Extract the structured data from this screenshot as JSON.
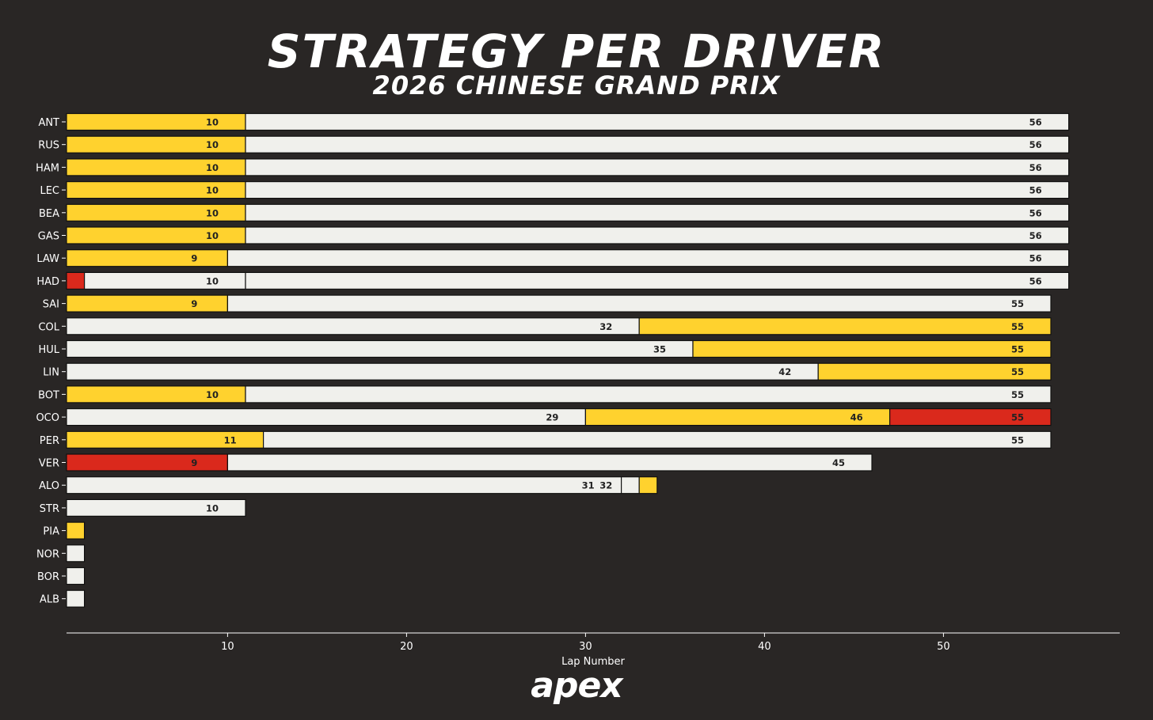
{
  "header": {
    "title": "STRATEGY PER DRIVER",
    "subtitle": "2026 CHINESE GRAND PRIX"
  },
  "brand": {
    "logo_text": "apex"
  },
  "colors": {
    "background": "#292625",
    "MEDIUM": "#FFD22E",
    "HARD": "#F0F0EC",
    "SOFT": "#DA291C",
    "text_on_bar": "#222222"
  },
  "chart_data": {
    "type": "bar",
    "orientation": "horizontal-stacked",
    "title": "STRATEGY PER DRIVER",
    "subtitle": "2026 CHINESE GRAND PRIX",
    "xlabel": "Lap Number",
    "ylabel": "",
    "xlim": [
      1,
      60
    ],
    "xticks": [
      10,
      20,
      30,
      40,
      50
    ],
    "compounds": [
      "SOFT",
      "MEDIUM",
      "HARD"
    ],
    "drivers": [
      {
        "driver": "ANT",
        "stints": [
          {
            "compound": "MEDIUM",
            "end": 10,
            "label": "10"
          },
          {
            "compound": "HARD",
            "end": 56,
            "label": "56"
          }
        ]
      },
      {
        "driver": "RUS",
        "stints": [
          {
            "compound": "MEDIUM",
            "end": 10,
            "label": "10"
          },
          {
            "compound": "HARD",
            "end": 56,
            "label": "56"
          }
        ]
      },
      {
        "driver": "HAM",
        "stints": [
          {
            "compound": "MEDIUM",
            "end": 10,
            "label": "10"
          },
          {
            "compound": "HARD",
            "end": 56,
            "label": "56"
          }
        ]
      },
      {
        "driver": "LEC",
        "stints": [
          {
            "compound": "MEDIUM",
            "end": 10,
            "label": "10"
          },
          {
            "compound": "HARD",
            "end": 56,
            "label": "56"
          }
        ]
      },
      {
        "driver": "BEA",
        "stints": [
          {
            "compound": "MEDIUM",
            "end": 10,
            "label": "10"
          },
          {
            "compound": "HARD",
            "end": 56,
            "label": "56"
          }
        ]
      },
      {
        "driver": "GAS",
        "stints": [
          {
            "compound": "MEDIUM",
            "end": 10,
            "label": "10"
          },
          {
            "compound": "HARD",
            "end": 56,
            "label": "56"
          }
        ]
      },
      {
        "driver": "LAW",
        "stints": [
          {
            "compound": "MEDIUM",
            "end": 9,
            "label": "9"
          },
          {
            "compound": "HARD",
            "end": 56,
            "label": "56"
          }
        ]
      },
      {
        "driver": "HAD",
        "stints": [
          {
            "compound": "SOFT",
            "end": 1,
            "label": ""
          },
          {
            "compound": "HARD",
            "end": 10,
            "label": "10"
          },
          {
            "compound": "HARD",
            "end": 56,
            "label": "56"
          }
        ]
      },
      {
        "driver": "SAI",
        "stints": [
          {
            "compound": "MEDIUM",
            "end": 9,
            "label": "9"
          },
          {
            "compound": "HARD",
            "end": 55,
            "label": "55"
          }
        ]
      },
      {
        "driver": "COL",
        "stints": [
          {
            "compound": "HARD",
            "end": 32,
            "label": "32"
          },
          {
            "compound": "MEDIUM",
            "end": 55,
            "label": "55"
          }
        ]
      },
      {
        "driver": "HUL",
        "stints": [
          {
            "compound": "HARD",
            "end": 35,
            "label": "35"
          },
          {
            "compound": "MEDIUM",
            "end": 55,
            "label": "55"
          }
        ]
      },
      {
        "driver": "LIN",
        "stints": [
          {
            "compound": "HARD",
            "end": 42,
            "label": "42"
          },
          {
            "compound": "MEDIUM",
            "end": 55,
            "label": "55"
          }
        ]
      },
      {
        "driver": "BOT",
        "stints": [
          {
            "compound": "MEDIUM",
            "end": 10,
            "label": "10"
          },
          {
            "compound": "HARD",
            "end": 55,
            "label": "55"
          }
        ]
      },
      {
        "driver": "OCO",
        "stints": [
          {
            "compound": "HARD",
            "end": 29,
            "label": "29"
          },
          {
            "compound": "MEDIUM",
            "end": 46,
            "label": "46"
          },
          {
            "compound": "SOFT",
            "end": 55,
            "label": "55"
          }
        ]
      },
      {
        "driver": "PER",
        "stints": [
          {
            "compound": "MEDIUM",
            "end": 11,
            "label": "11"
          },
          {
            "compound": "HARD",
            "end": 55,
            "label": "55"
          }
        ]
      },
      {
        "driver": "VER",
        "stints": [
          {
            "compound": "SOFT",
            "end": 9,
            "label": "9"
          },
          {
            "compound": "HARD",
            "end": 45,
            "label": "45"
          }
        ]
      },
      {
        "driver": "ALO",
        "stints": [
          {
            "compound": "HARD",
            "end": 31,
            "label": "31"
          },
          {
            "compound": "HARD",
            "end": 32,
            "label": "32"
          },
          {
            "compound": "MEDIUM",
            "end": 32,
            "label": ""
          }
        ]
      },
      {
        "driver": "STR",
        "stints": [
          {
            "compound": "HARD",
            "end": 10,
            "label": "10"
          }
        ]
      },
      {
        "driver": "PIA",
        "stints": [
          {
            "compound": "MEDIUM",
            "end": 1,
            "label": ""
          }
        ]
      },
      {
        "driver": "NOR",
        "stints": [
          {
            "compound": "HARD",
            "end": 1,
            "label": ""
          }
        ]
      },
      {
        "driver": "BOR",
        "stints": [
          {
            "compound": "HARD",
            "end": 1,
            "label": ""
          }
        ]
      },
      {
        "driver": "ALB",
        "stints": [
          {
            "compound": "HARD",
            "end": 1,
            "label": ""
          }
        ]
      }
    ]
  }
}
